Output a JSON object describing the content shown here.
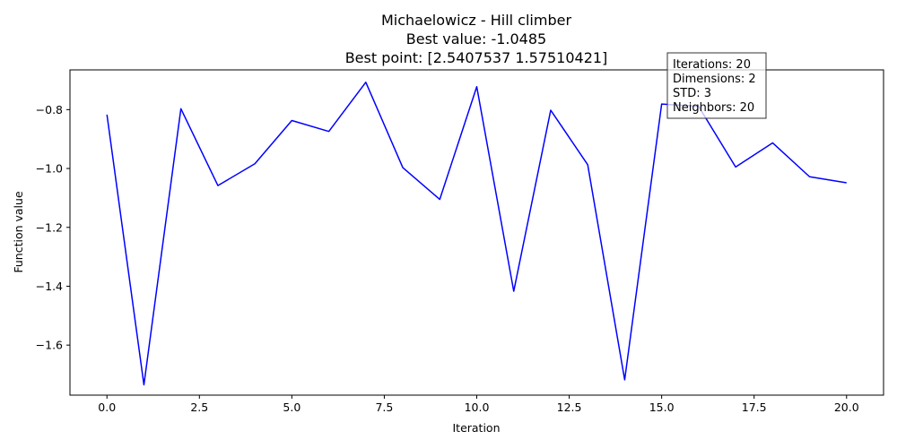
{
  "chart_data": {
    "type": "line",
    "title": [
      "Michaelowicz - Hill climber",
      "Best value: -1.0485",
      "Best point: [2.5407537  1.57510421]"
    ],
    "xlabel": "Iteration",
    "ylabel": "Function value",
    "xlim": [
      -1.0,
      21.0
    ],
    "ylim": [
      -1.77,
      -0.665
    ],
    "x_ticks": [
      0.0,
      2.5,
      5.0,
      7.5,
      10.0,
      12.5,
      15.0,
      17.5,
      20.0
    ],
    "x_tick_labels": [
      "0.0",
      "2.5",
      "5.0",
      "7.5",
      "10.0",
      "12.5",
      "15.0",
      "17.5",
      "20.0"
    ],
    "y_ticks": [
      -1.6,
      -1.4,
      -1.2,
      -1.0,
      -0.8
    ],
    "y_tick_labels": [
      "−1.6",
      "−1.4",
      "−1.2",
      "−1.0",
      "−0.8"
    ],
    "grid": false,
    "series": [
      {
        "color": "#0000ff",
        "x": [
          0,
          1,
          2,
          3,
          4,
          5,
          6,
          7,
          8,
          9,
          10,
          11,
          12,
          13,
          14,
          15,
          16,
          17,
          18,
          19,
          20
        ],
        "y": [
          -0.817,
          -1.735,
          -0.797,
          -1.058,
          -0.984,
          -0.837,
          -0.874,
          -0.707,
          -0.997,
          -1.105,
          -0.722,
          -1.417,
          -0.802,
          -0.987,
          -1.718,
          -0.781,
          -0.789,
          -0.995,
          -0.913,
          -1.028,
          -1.0485
        ]
      }
    ],
    "annotation_box": {
      "lines": [
        "Iterations: 20",
        "Dimensions: 2",
        "STD: 3",
        "Neighbors: 20"
      ]
    }
  }
}
